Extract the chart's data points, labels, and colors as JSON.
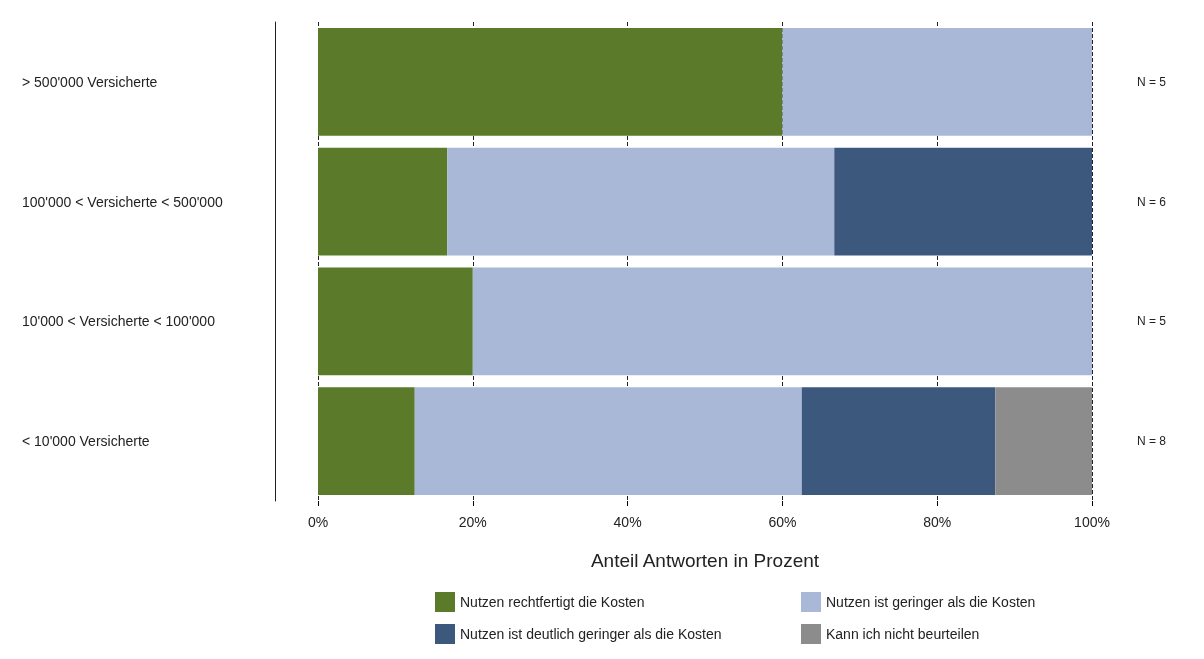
{
  "chart_data": {
    "type": "bar",
    "orientation": "horizontal",
    "stacked": true,
    "xlabel": "Anteil Antworten in Prozent",
    "categories": [
      "> 500'000 Versicherte",
      "100'000 < Versicherte < 500'000",
      "10'000 < Versicherte < 100'000",
      "< 10'000 Versicherte"
    ],
    "series": [
      {
        "name": "Nutzen rechtfertigt die Kosten",
        "color": "#5b7a2a",
        "values": [
          60,
          16.7,
          20,
          12.5
        ]
      },
      {
        "name": "Nutzen ist geringer als die Kosten",
        "color": "#a8b8d6",
        "values": [
          40,
          50,
          80,
          50
        ]
      },
      {
        "name": "Nutzen ist deutlich geringer als die Kosten",
        "color": "#3d587d",
        "values": [
          0,
          33.3,
          0,
          25
        ]
      },
      {
        "name": "Kann ich nicht beurteilen",
        "color": "#8c8c8c",
        "values": [
          0,
          0,
          0,
          12.5
        ]
      }
    ],
    "xlim": [
      0,
      100
    ],
    "xticks": [
      {
        "value": 0,
        "label": "0%"
      },
      {
        "value": 20,
        "label": "20%"
      },
      {
        "value": 40,
        "label": "40%"
      },
      {
        "value": 60,
        "label": "60%"
      },
      {
        "value": 80,
        "label": "80%"
      },
      {
        "value": 100,
        "label": "100%"
      }
    ],
    "grid": "x",
    "legend": "bottom",
    "annotations": [
      "N = 5",
      "N = 6",
      "N = 5",
      "N = 8"
    ]
  }
}
